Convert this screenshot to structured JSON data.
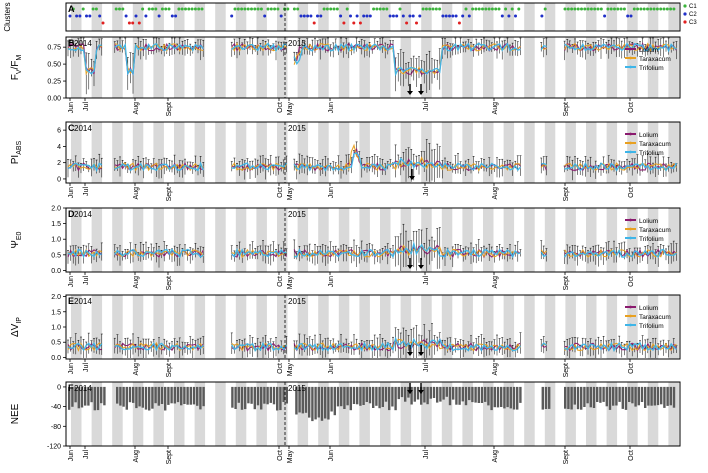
{
  "chart_data": {
    "type": "line",
    "timeline": {
      "years": [
        "2014",
        "2015"
      ],
      "months": [
        "Jun",
        "Jul",
        "Aug",
        "Sept",
        "Oct",
        "May",
        "Jun",
        "Jul",
        "Aug",
        "Sept",
        "Oct"
      ]
    },
    "clusters": {
      "label": "Clusters",
      "panel": "A",
      "legend": [
        "C1",
        "C2",
        "C3"
      ],
      "colors": {
        "C1": "#3cb43c",
        "C2": "#1f2fc8",
        "C3": "#e02020"
      }
    },
    "series_names": [
      "Lolium",
      "Taraxacum",
      "Trifolium"
    ],
    "series_colors": {
      "Lolium": "#8a1a6e",
      "Taraxacum": "#e8a020",
      "Trifolium": "#3eb5e8"
    },
    "panels": [
      {
        "letter": "B",
        "ylabel": "FV/FM",
        "ylabel_main": "F",
        "sub1": "V",
        "sub2": "M",
        "ylim": [
          0,
          0.9
        ],
        "yticks": [
          "0.00",
          "0.25",
          "0.50",
          "0.75"
        ],
        "base": 0.75,
        "legend": true
      },
      {
        "letter": "C",
        "ylabel": "PIABS",
        "ylabel_main": "PI",
        "sub1": "ABS",
        "ylim": [
          -0.5,
          7
        ],
        "yticks": [
          "0",
          "2",
          "4",
          "6"
        ],
        "base": 1.5,
        "legend": true
      },
      {
        "letter": "D",
        "ylabel": "ΨE0",
        "ylabel_main": "Ψ",
        "sub1": "E0",
        "ylim": [
          -0.05,
          2
        ],
        "yticks": [
          "0.0",
          "0.5",
          "1.0",
          "1.5",
          "2.0"
        ],
        "base": 0.55,
        "legend": true
      },
      {
        "letter": "E",
        "ylabel": "ΔVIP",
        "ylabel_main": "ΔV",
        "sub1": "IP",
        "ylim": [
          -0.05,
          2.05
        ],
        "yticks": [
          "0.0",
          "0.5",
          "1.0",
          "1.5",
          "2.0"
        ],
        "base": 0.35,
        "legend": true
      },
      {
        "letter": "F",
        "ylabel": "NEE",
        "ylabel_main": "NEE",
        "ylim": [
          -120,
          10
        ],
        "yticks": [
          "0",
          "-40",
          "-80",
          "-120"
        ],
        "base": -30,
        "legend": false
      }
    ]
  }
}
